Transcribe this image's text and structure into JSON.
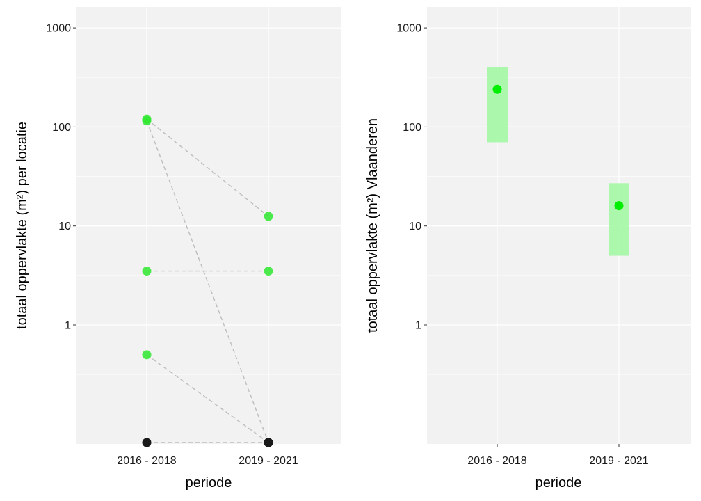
{
  "chart_data": [
    {
      "type": "scatter",
      "xlabel": "periode",
      "ylabel": "totaal oppervlakte (m²) per locatie",
      "y_scale": "log10",
      "y_ticks": [
        {
          "value": 1,
          "label": "1"
        },
        {
          "value": 10,
          "label": "10"
        },
        {
          "value": 100,
          "label": "100"
        },
        {
          "value": 1000,
          "label": "1000"
        }
      ],
      "categories": [
        "2016 - 2018",
        "2019 - 2021"
      ],
      "ylim": [
        0.06,
        1500
      ],
      "grid": true,
      "background": "#f2f2f2",
      "zero_marker_color": "#1a1a1a",
      "point_color": "#2ee82e",
      "pairs": [
        {
          "y": [
            120,
            12.5
          ]
        },
        {
          "y": [
            3.5,
            3.5
          ]
        },
        {
          "y": [
            115,
            0
          ]
        },
        {
          "y": [
            0.5,
            0
          ]
        },
        {
          "y": [
            0,
            0
          ]
        }
      ]
    },
    {
      "type": "scatter",
      "xlabel": "periode",
      "ylabel": "totaal oppervlakte (m²) Vlaanderen",
      "y_scale": "log10",
      "y_ticks": [
        {
          "value": 1,
          "label": "1"
        },
        {
          "value": 10,
          "label": "10"
        },
        {
          "value": 100,
          "label": "100"
        },
        {
          "value": 1000,
          "label": "1000"
        }
      ],
      "categories": [
        "2016 - 2018",
        "2019 - 2021"
      ],
      "ylim": [
        0.06,
        1500
      ],
      "grid": true,
      "background": "#f2f2f2",
      "point_color": "#00ee00",
      "interval_color": "#a3f7a3",
      "estimates": [
        {
          "category": "2016 - 2018",
          "value": 240,
          "lower": 70,
          "upper": 400
        },
        {
          "category": "2019 - 2021",
          "value": 16,
          "lower": 5,
          "upper": 27
        }
      ]
    }
  ]
}
